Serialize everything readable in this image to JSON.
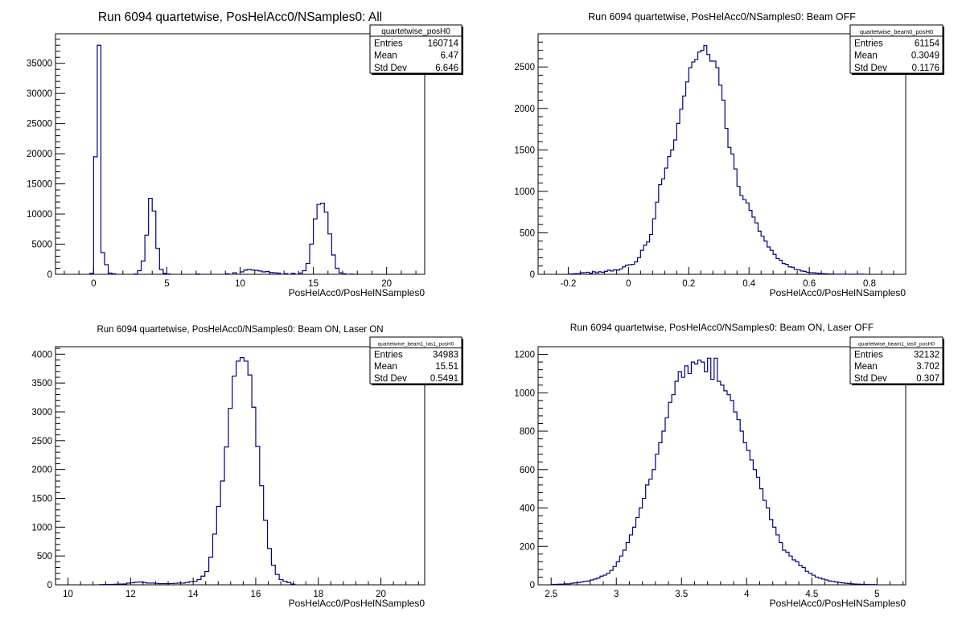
{
  "chart_data": [
    {
      "type": "bar",
      "title": "Run 6094 quartetwise, PosHelAcc0/NSamples0: All",
      "xlabel": "PosHelAcc0/PosHelNSamples0",
      "ylabel": "",
      "xlim": [
        -2.6,
        22.6
      ],
      "ylim": [
        0,
        39900
      ],
      "xticks": [
        0,
        5,
        10,
        15,
        20
      ],
      "yticks": [
        0,
        5000,
        10000,
        15000,
        20000,
        25000,
        30000,
        35000
      ],
      "bin_width": 0.25,
      "x": [
        -0.25,
        0,
        0.25,
        0.5,
        0.75,
        1,
        1.25,
        2.75,
        3,
        3.25,
        3.5,
        3.75,
        4,
        4.25,
        4.5,
        4.75,
        5,
        7,
        9,
        9.5,
        10,
        10.25,
        10.5,
        10.75,
        11,
        11.25,
        11.5,
        11.75,
        12,
        12.25,
        12.5,
        13,
        13.5,
        14,
        14.25,
        14.5,
        14.75,
        15,
        15.25,
        15.5,
        15.75,
        16,
        16.25,
        16.5,
        16.75,
        17,
        17.5
      ],
      "values": [
        150,
        19500,
        38000,
        3600,
        1600,
        200,
        80,
        50,
        600,
        2200,
        6500,
        12600,
        10500,
        4300,
        800,
        150,
        60,
        50,
        80,
        250,
        400,
        700,
        800,
        700,
        650,
        550,
        400,
        450,
        300,
        250,
        200,
        100,
        150,
        200,
        600,
        1800,
        5000,
        9200,
        11600,
        11800,
        10300,
        6700,
        3200,
        1000,
        250,
        80,
        30
      ],
      "series": [
        {
          "name": "quartetwise_posH0"
        }
      ],
      "stats": {
        "name": "quartetwise_posH0",
        "rows": [
          [
            "Entries",
            "160714"
          ],
          [
            "Mean",
            "6.47"
          ],
          [
            "Std Dev",
            "6.646"
          ]
        ]
      }
    },
    {
      "type": "bar",
      "title": "Run 6094 quartetwise, PosHelAcc0/NSamples0: Beam OFF",
      "xlabel": "PosHelAcc0/PosHelNSamples0",
      "ylabel": "",
      "xlim": [
        -0.3,
        0.92
      ],
      "ylim": [
        0,
        2900
      ],
      "xticks": [
        -0.2,
        0,
        0.2,
        0.4,
        0.6,
        0.8
      ],
      "yticks": [
        0,
        500,
        1000,
        1500,
        2000,
        2500
      ],
      "bin_width": 0.01,
      "x": [
        -0.2,
        -0.19,
        -0.18,
        -0.17,
        -0.16,
        -0.15,
        -0.14,
        -0.13,
        -0.12,
        -0.11,
        -0.1,
        -0.09,
        -0.08,
        -0.07,
        -0.06,
        -0.05,
        -0.04,
        -0.03,
        -0.02,
        -0.01,
        0.0,
        0.01,
        0.02,
        0.03,
        0.04,
        0.05,
        0.06,
        0.07,
        0.08,
        0.09,
        0.1,
        0.11,
        0.12,
        0.13,
        0.14,
        0.15,
        0.16,
        0.17,
        0.18,
        0.19,
        0.2,
        0.21,
        0.22,
        0.23,
        0.24,
        0.25,
        0.26,
        0.27,
        0.28,
        0.29,
        0.3,
        0.31,
        0.32,
        0.33,
        0.34,
        0.35,
        0.36,
        0.37,
        0.38,
        0.39,
        0.4,
        0.41,
        0.42,
        0.43,
        0.44,
        0.45,
        0.46,
        0.47,
        0.48,
        0.49,
        0.5,
        0.51,
        0.52,
        0.53,
        0.54,
        0.55,
        0.56,
        0.57,
        0.58,
        0.59,
        0.6,
        0.61,
        0.62,
        0.63,
        0.64,
        0.65,
        0.66,
        0.67,
        0.68,
        0.69,
        0.7,
        0.71,
        0.72,
        0.73,
        0.74,
        0.75,
        0.76,
        0.77
      ],
      "values": [
        3,
        5,
        8,
        8,
        18,
        20,
        25,
        12,
        30,
        18,
        30,
        25,
        35,
        50,
        40,
        55,
        50,
        65,
        90,
        110,
        115,
        120,
        150,
        200,
        290,
        350,
        390,
        480,
        670,
        870,
        1080,
        1150,
        1280,
        1420,
        1500,
        1620,
        1820,
        1990,
        2150,
        2320,
        2490,
        2560,
        2590,
        2680,
        2700,
        2760,
        2650,
        2570,
        2570,
        2490,
        2280,
        2100,
        1760,
        1530,
        1450,
        1270,
        1060,
        950,
        900,
        860,
        770,
        690,
        620,
        520,
        460,
        400,
        330,
        290,
        240,
        190,
        170,
        130,
        120,
        90,
        85,
        60,
        55,
        40,
        35,
        25,
        20,
        18,
        15,
        10,
        8,
        6,
        4,
        3,
        2,
        2,
        1,
        1,
        1,
        1,
        1,
        1,
        1,
        1
      ],
      "series": [
        {
          "name": "quartetwise_beam0_posH0"
        }
      ],
      "stats": {
        "name": "quartetwise_beam0_posH0",
        "rows": [
          [
            "Entries",
            "61154"
          ],
          [
            "Mean",
            "0.3049"
          ],
          [
            "Std Dev",
            "0.1176"
          ]
        ]
      }
    },
    {
      "type": "bar",
      "title": "Run 6094 quartetwise, PosHelAcc0/NSamples0: Beam ON, Laser ON",
      "xlabel": "PosHelAcc0/PosHelNSamples0",
      "ylabel": "",
      "xlim": [
        9.6,
        21.4
      ],
      "ylim": [
        0,
        4130
      ],
      "xticks": [
        10,
        12,
        14,
        16,
        18,
        20
      ],
      "yticks": [
        0,
        500,
        1000,
        1500,
        2000,
        2500,
        3000,
        3500,
        4000
      ],
      "bin_width": 0.125,
      "x": [
        11.0,
        11.125,
        11.25,
        11.375,
        11.5,
        11.625,
        11.75,
        11.875,
        12.0,
        12.125,
        12.25,
        12.375,
        12.5,
        12.625,
        12.75,
        12.875,
        13.0,
        13.125,
        13.25,
        13.375,
        13.5,
        13.625,
        13.75,
        13.875,
        14.0,
        14.125,
        14.25,
        14.375,
        14.5,
        14.625,
        14.75,
        14.875,
        15.0,
        15.125,
        15.25,
        15.375,
        15.5,
        15.625,
        15.75,
        15.875,
        16.0,
        16.125,
        16.25,
        16.375,
        16.5,
        16.625,
        16.75,
        16.875,
        17.0,
        17.125
      ],
      "values": [
        3,
        5,
        5,
        8,
        10,
        12,
        15,
        30,
        35,
        45,
        50,
        40,
        30,
        30,
        25,
        20,
        20,
        20,
        22,
        25,
        30,
        30,
        40,
        55,
        60,
        90,
        150,
        230,
        480,
        880,
        1360,
        1800,
        2390,
        3060,
        3620,
        3880,
        3940,
        3880,
        3640,
        3080,
        2400,
        1720,
        1120,
        630,
        340,
        180,
        90,
        60,
        40,
        10
      ],
      "series": [
        {
          "name": "quartetwise_beam1_las1_posH0"
        }
      ],
      "stats": {
        "name": "quartetwise_beam1_las1_posH0",
        "rows": [
          [
            "Entries",
            "34983"
          ],
          [
            "Mean",
            "15.51"
          ],
          [
            "Std Dev",
            "0.5491"
          ]
        ]
      }
    },
    {
      "type": "bar",
      "title": "Run 6094 quartetwise, PosHelAcc0/NSamples0: Beam ON, Laser OFF",
      "xlabel": "PosHelAcc0/PosHelNSamples0",
      "ylabel": "",
      "xlim": [
        2.4,
        5.22
      ],
      "ylim": [
        0,
        1240
      ],
      "xticks": [
        2.5,
        3,
        3.5,
        4,
        4.5,
        5
      ],
      "yticks": [
        0,
        200,
        400,
        600,
        800,
        1000,
        1200
      ],
      "bin_width": 0.025,
      "x": [
        2.5,
        2.525,
        2.55,
        2.575,
        2.6,
        2.625,
        2.65,
        2.675,
        2.7,
        2.725,
        2.75,
        2.775,
        2.8,
        2.825,
        2.85,
        2.875,
        2.9,
        2.925,
        2.95,
        2.975,
        3.0,
        3.025,
        3.05,
        3.075,
        3.1,
        3.125,
        3.15,
        3.175,
        3.2,
        3.225,
        3.25,
        3.275,
        3.3,
        3.325,
        3.35,
        3.375,
        3.4,
        3.425,
        3.45,
        3.475,
        3.5,
        3.525,
        3.55,
        3.575,
        3.6,
        3.625,
        3.65,
        3.675,
        3.7,
        3.725,
        3.75,
        3.775,
        3.8,
        3.825,
        3.85,
        3.875,
        3.9,
        3.925,
        3.95,
        3.975,
        4.0,
        4.025,
        4.05,
        4.075,
        4.1,
        4.125,
        4.15,
        4.175,
        4.2,
        4.225,
        4.25,
        4.275,
        4.3,
        4.325,
        4.35,
        4.375,
        4.4,
        4.425,
        4.45,
        4.475,
        4.5,
        4.525,
        4.55,
        4.575,
        4.6,
        4.625,
        4.65,
        4.675,
        4.7,
        4.725,
        4.75,
        4.775,
        4.8,
        4.825,
        4.85,
        4.875,
        4.9,
        4.925,
        4.95,
        4.975
      ],
      "values": [
        2,
        2,
        3,
        3,
        5,
        5,
        8,
        10,
        12,
        15,
        18,
        20,
        25,
        30,
        35,
        45,
        50,
        60,
        75,
        95,
        120,
        150,
        180,
        220,
        260,
        300,
        350,
        400,
        450,
        520,
        550,
        600,
        680,
        740,
        800,
        870,
        950,
        990,
        1060,
        1110,
        1080,
        1140,
        1100,
        1160,
        1150,
        1170,
        1160,
        1110,
        1180,
        1070,
        1180,
        1060,
        1040,
        1010,
        990,
        960,
        900,
        860,
        800,
        740,
        700,
        650,
        600,
        560,
        500,
        440,
        400,
        340,
        300,
        260,
        220,
        180,
        170,
        150,
        130,
        120,
        100,
        90,
        70,
        60,
        50,
        40,
        35,
        30,
        25,
        20,
        18,
        15,
        12,
        10,
        8,
        6,
        5,
        4,
        3,
        2,
        2,
        1,
        1,
        1
      ],
      "series": [
        {
          "name": "quartetwise_beam1_las0_posH0"
        }
      ],
      "stats": {
        "name": "quartetwise_beam1_las0_posH0",
        "rows": [
          [
            "Entries",
            "32132"
          ],
          [
            "Mean",
            "3.702"
          ],
          [
            "Std Dev",
            "0.307"
          ]
        ]
      }
    }
  ],
  "colors": {
    "histogram_line": "#00007f",
    "frame": "#000000",
    "background": "#ffffff"
  }
}
